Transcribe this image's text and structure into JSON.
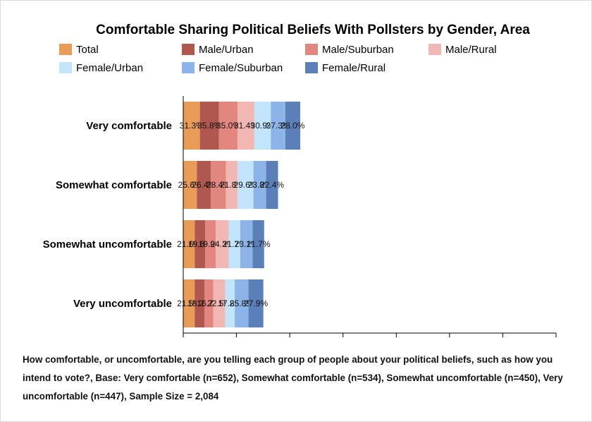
{
  "chart_data": {
    "type": "bar",
    "orientation": "horizontal",
    "stacked": true,
    "title": "Comfortable Sharing Political Beliefs With Pollsters by Gender, Area",
    "categories": [
      "Very comfortable",
      "Somewhat comfortable",
      "Somewhat uncomfortable",
      "Very uncomfortable"
    ],
    "series": [
      {
        "name": "Total",
        "color": "#e89c57",
        "values": [
          31.3,
          25.6,
          21.6,
          21.5
        ],
        "labels": [
          "31.3%",
          "25.6%",
          "21.6%",
          "21.5%"
        ]
      },
      {
        "name": "Male/Urban",
        "color": "#b0584f",
        "values": [
          35.8,
          26.4,
          19.6,
          18.2
        ],
        "labels": [
          "35.8%",
          "26.4%",
          "19.6%",
          "18.2%"
        ]
      },
      {
        "name": "Male/Suburban",
        "color": "#e3867f",
        "values": [
          35.0,
          28.4,
          19.9,
          16.7
        ],
        "labels": [
          "35.0%",
          "28.4%",
          "19.9%",
          "16.7%"
        ]
      },
      {
        "name": "Male/Rural",
        "color": "#f1b7b2",
        "values": [
          31.4,
          21.8,
          24.3,
          22.5
        ],
        "labels": [
          "31.4%",
          "21.8%",
          "24.3%",
          "22.5%"
        ]
      },
      {
        "name": "Female/Urban",
        "color": "#c2e5fb",
        "values": [
          30.9,
          29.6,
          21.7,
          17.8
        ],
        "labels": [
          "30.9%",
          "29.6%",
          "21.7%",
          "17.8%"
        ]
      },
      {
        "name": "Female/Suburban",
        "color": "#8cb4e8",
        "values": [
          27.3,
          23.8,
          23.1,
          25.8
        ],
        "labels": [
          "27.3%",
          "23.8%",
          "23.1%",
          "25.8%"
        ]
      },
      {
        "name": "Female/Rural",
        "color": "#5b80b9",
        "values": [
          28.0,
          22.4,
          21.7,
          27.9
        ],
        "labels": [
          "28.0%",
          "22.4%",
          "21.7%",
          "27.9%"
        ]
      }
    ],
    "xlim": [
      0,
      700
    ],
    "xlabel": "",
    "ylabel": "",
    "grid": false,
    "legend": "top"
  },
  "footnote": "How comfortable, or uncomfortable, are you telling each group of people about your political beliefs, such as how you intend to vote?, Base: Very comfortable (n=652), Somewhat comfortable (n=534), Somewhat uncomfortable (n=450), Very uncomfortable (n=447), Sample Size = 2,084"
}
